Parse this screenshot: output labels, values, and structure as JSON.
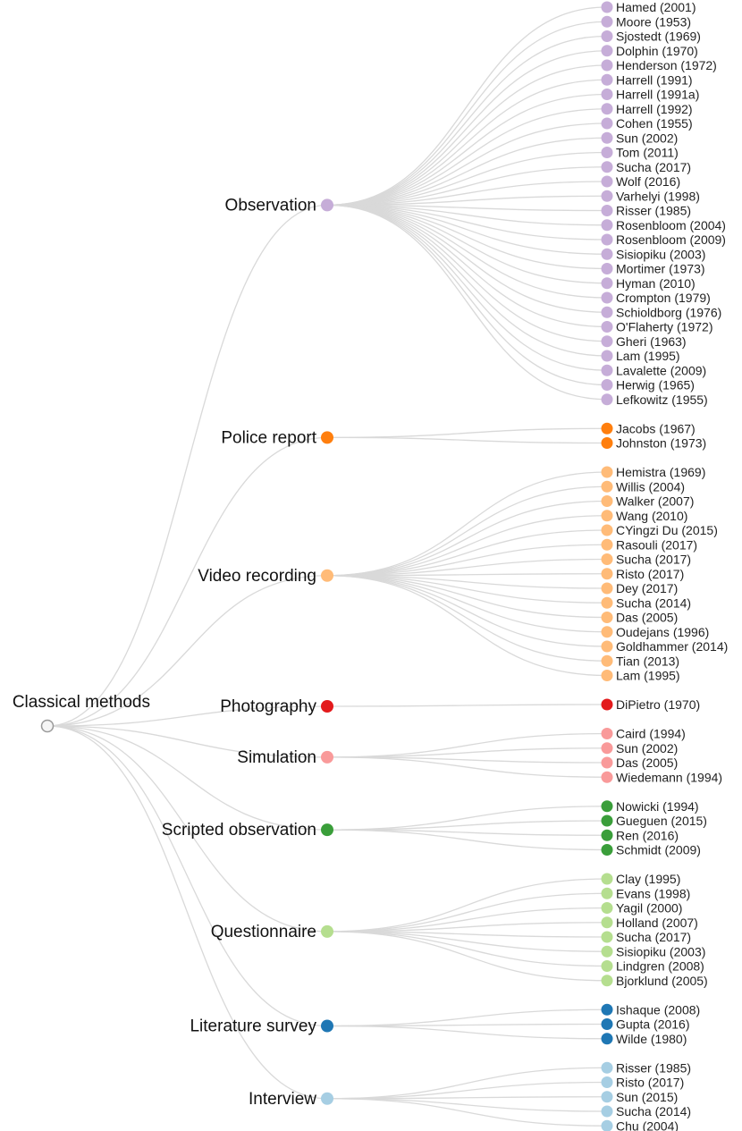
{
  "root": {
    "label": "Classical methods"
  },
  "categories": [
    {
      "name": "Observation",
      "color": "#c6add8",
      "leaves": [
        "Hamed (2001)",
        "Moore (1953)",
        "Sjostedt (1969)",
        "Dolphin (1970)",
        "Henderson (1972)",
        "Harrell (1991)",
        "Harrell (1991a)",
        "Harrell (1992)",
        "Cohen (1955)",
        "Sun (2002)",
        "Tom (2011)",
        "Sucha (2017)",
        "Wolf (2016)",
        "Varhelyi (1998)",
        "Risser (1985)",
        "Rosenbloom (2004)",
        "Rosenbloom (2009)",
        "Sisiopiku (2003)",
        "Mortimer (1973)",
        "Hyman (2010)",
        "Crompton (1979)",
        "Schioldborg (1976)",
        "O'Flaherty (1972)",
        "Gheri (1963)",
        "Lam (1995)",
        "Lavalette (2009)",
        "Herwig (1965)",
        "Lefkowitz (1955)"
      ]
    },
    {
      "name": "Police report",
      "color": "#ff7f0e",
      "leaves": [
        "Jacobs (1967)",
        "Johnston (1973)"
      ]
    },
    {
      "name": "Video recording",
      "color": "#ffbb78",
      "leaves": [
        "Hemistra (1969)",
        "Willis (2004)",
        "Walker (2007)",
        "Wang (2010)",
        "CYingzi Du (2015)",
        "Rasouli (2017)",
        "Sucha (2017)",
        "Risto (2017)",
        "Dey (2017)",
        "Sucha (2014)",
        "Das (2005)",
        "Oudejans (1996)",
        "Goldhammer (2014)",
        "Tian (2013)",
        "Lam (1995)"
      ]
    },
    {
      "name": "Photography",
      "color": "#e31a1c",
      "leaves": [
        "DiPietro (1970)"
      ]
    },
    {
      "name": "Simulation",
      "color": "#f99a9a",
      "leaves": [
        "Caird (1994)",
        "Sun (2002)",
        "Das (2005)",
        "Wiedemann (1994)"
      ]
    },
    {
      "name": "Scripted observation",
      "color": "#3a9e3a",
      "leaves": [
        "Nowicki (1994)",
        "Gueguen (2015)",
        "Ren (2016)",
        "Schmidt (2009)"
      ]
    },
    {
      "name": "Questionnaire",
      "color": "#b5de8f",
      "leaves": [
        "Clay (1995)",
        "Evans (1998)",
        "Yagil (2000)",
        "Holland (2007)",
        "Sucha (2017)",
        "Sisiopiku (2003)",
        "Lindgren (2008)",
        "Bjorklund (2005)"
      ]
    },
    {
      "name": "Literature survey",
      "color": "#1f77b4",
      "leaves": [
        "Ishaque (2008)",
        "Gupta (2016)",
        "Wilde (1980)"
      ]
    },
    {
      "name": "Interview",
      "color": "#a6cee3",
      "leaves": [
        "Risser (1985)",
        "Risto (2017)",
        "Sun (2015)",
        "Sucha (2014)",
        "Chu (2004)"
      ]
    }
  ]
}
